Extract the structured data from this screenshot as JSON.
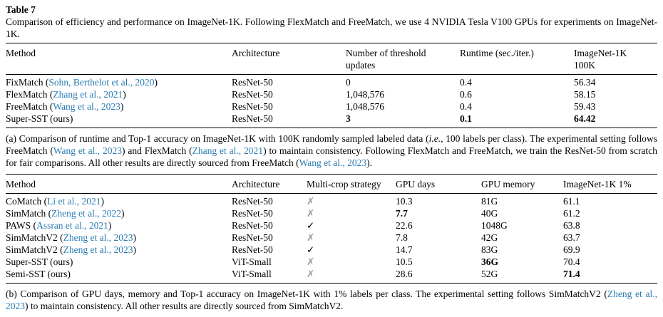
{
  "colors": {
    "citation": "#2a7cb1",
    "x_mark_gray": "#9a9a9a"
  },
  "page": {
    "title": "Table 7",
    "caption": "Comparison of efficiency and performance on ImageNet-1K. Following FlexMatch and FreeMatch, we use 4 NVIDIA Tesla V100 GPUs for experiments on ImageNet-1K."
  },
  "table_a": {
    "headers": [
      "Method",
      "Architecture",
      "Number of threshold updates",
      "Runtime (sec./iter.)",
      "ImageNet-1K 100K"
    ],
    "col_keys": [
      "method",
      "architecture",
      "threshold_updates",
      "runtime",
      "accuracy"
    ],
    "rows": [
      {
        "method_pre": "FixMatch (",
        "method_cite": "Sohn, Berthelot et al., 2020",
        "method_post": ")",
        "architecture": "ResNet-50",
        "threshold_updates": "0",
        "runtime": "0.4",
        "accuracy": "56.34",
        "bold": []
      },
      {
        "method_pre": "FlexMatch (",
        "method_cite": "Zhang et al., 2021",
        "method_post": ")",
        "architecture": "ResNet-50",
        "threshold_updates": "1,048,576",
        "runtime": "0.6",
        "accuracy": "58.15",
        "bold": []
      },
      {
        "method_pre": "FreeMatch (",
        "method_cite": "Wang et al., 2023",
        "method_post": ")",
        "architecture": "ResNet-50",
        "threshold_updates": "1,048,576",
        "runtime": "0.4",
        "accuracy": "59.43",
        "bold": []
      },
      {
        "method_pre": "Super-SST (ours)",
        "method_cite": "",
        "method_post": "",
        "architecture": "ResNet-50",
        "threshold_updates": "3",
        "runtime": "0.1",
        "accuracy": "64.42",
        "bold": [
          "threshold_updates",
          "runtime",
          "accuracy"
        ]
      }
    ],
    "caption_segments": [
      {
        "t": "(a) Comparison of runtime and Top-1 accuracy on ImageNet-1K with 100K randomly sampled labeled data ("
      },
      {
        "t": "i.e.",
        "i": true
      },
      {
        "t": ", 100 labels per class). The experimental setting follows FreeMatch ("
      },
      {
        "t": "Wang et al., 2023",
        "c": true
      },
      {
        "t": ") and FlexMatch ("
      },
      {
        "t": "Zhang et al., 2021",
        "c": true
      },
      {
        "t": ") to maintain consistency. Following FlexMatch and FreeMatch, we train the ResNet-50 from scratch for fair comparisons. All other results are directly sourced from FreeMatch ("
      },
      {
        "t": "Wang et al., 2023",
        "c": true
      },
      {
        "t": ")."
      }
    ]
  },
  "table_b": {
    "headers": [
      "Method",
      "Architecture",
      "Multi-crop strategy",
      "GPU days",
      "GPU memory",
      "ImageNet-1K 1%"
    ],
    "col_keys": [
      "method",
      "architecture",
      "multicrop",
      "gpu_days",
      "gpu_memory",
      "accuracy"
    ],
    "rows": [
      {
        "method_pre": "CoMatch (",
        "method_cite": "Li et al., 2021",
        "method_post": ")",
        "architecture": "ResNet-50",
        "multicrop": "✗",
        "gpu_days": "10.3",
        "gpu_memory": "81G",
        "accuracy": "61.1",
        "bold": []
      },
      {
        "method_pre": "SimMatch (",
        "method_cite": "Zheng et al., 2022",
        "method_post": ")",
        "architecture": "ResNet-50",
        "multicrop": "✗",
        "gpu_days": "7.7",
        "gpu_memory": "40G",
        "accuracy": "61.2",
        "bold": [
          "gpu_days"
        ]
      },
      {
        "method_pre": "PAWS (",
        "method_cite": "Assran et al., 2021",
        "method_post": ")",
        "architecture": "ResNet-50",
        "multicrop": "✓",
        "gpu_days": "22.6",
        "gpu_memory": "1048G",
        "accuracy": "63.8",
        "bold": []
      },
      {
        "method_pre": "SimMatchV2 (",
        "method_cite": "Zheng et al., 2023",
        "method_post": ")",
        "architecture": "ResNet-50",
        "multicrop": "✗",
        "gpu_days": "7.8",
        "gpu_memory": "42G",
        "accuracy": "63.7",
        "bold": []
      },
      {
        "method_pre": "SimMatchV2 (",
        "method_cite": "Zheng et al., 2023",
        "method_post": ")",
        "architecture": "ResNet-50",
        "multicrop": "✓",
        "gpu_days": "14.7",
        "gpu_memory": "83G",
        "accuracy": "69.9",
        "bold": []
      },
      {
        "method_pre": "Super-SST (ours)",
        "method_cite": "",
        "method_post": "",
        "architecture": "ViT-Small",
        "multicrop": "✗",
        "gpu_days": "10.5",
        "gpu_memory": "36G",
        "accuracy": "70.4",
        "bold": [
          "gpu_memory"
        ]
      },
      {
        "method_pre": "Semi-SST (ours)",
        "method_cite": "",
        "method_post": "",
        "architecture": "ViT-Small",
        "multicrop": "✗",
        "gpu_days": "28.6",
        "gpu_memory": "52G",
        "accuracy": "71.4",
        "bold": [
          "accuracy"
        ]
      }
    ],
    "caption_segments": [
      {
        "t": "(b) Comparison of GPU days, memory and Top-1 accuracy on ImageNet-1K with 1% labels per class. The experimental setting follows SimMatchV2 ("
      },
      {
        "t": "Zheng et al., 2023",
        "c": true
      },
      {
        "t": ") to maintain consistency. All other results are directly sourced from SimMatchV2."
      }
    ]
  }
}
